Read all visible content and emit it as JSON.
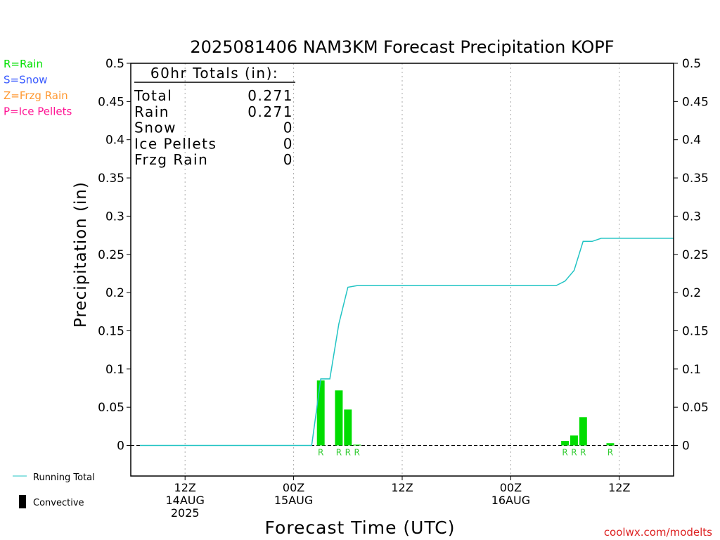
{
  "chart_data": {
    "type": "bar",
    "title": "2025081406 NAM3KM Forecast Precipitation KOPF",
    "xlabel": "Forecast Time (UTC)",
    "ylabel": "Precipitation (in)",
    "ylim": [
      -0.04,
      0.5
    ],
    "xlim": [
      "2025-08-14 06Z",
      "2025-08-16 18Z"
    ],
    "y_ticks": [
      "0",
      "0.05",
      "0.1",
      "0.15",
      "0.2",
      "0.25",
      "0.3",
      "0.35",
      "0.4",
      "0.45",
      "0.5"
    ],
    "x_ticks": [
      {
        "t": "2025-08-14 12Z",
        "lines": [
          "12Z",
          "14AUG",
          "2025"
        ]
      },
      {
        "t": "2025-08-15 00Z",
        "lines": [
          "00Z",
          "15AUG"
        ]
      },
      {
        "t": "2025-08-15 12Z",
        "lines": [
          "12Z"
        ]
      },
      {
        "t": "2025-08-16 00Z",
        "lines": [
          "00Z",
          "16AUG"
        ]
      },
      {
        "t": "2025-08-16 12Z",
        "lines": [
          "12Z"
        ]
      }
    ],
    "grid": "vertical dotted at tick times",
    "legend": {
      "placement": "left",
      "ptype_key": [
        {
          "label": "R=Rain",
          "color": "#00e000"
        },
        {
          "label": "S=Snow",
          "color": "#3a5bff"
        },
        {
          "label": "Z=Frzg Rain",
          "color": "#ff9933"
        },
        {
          "label": "P=Ice Pellets",
          "color": "#ff1493"
        }
      ],
      "series_key": [
        {
          "label": "Running Total",
          "color": "#22c4c4"
        },
        {
          "label": "Convective",
          "color": "#000000"
        }
      ]
    },
    "totals": {
      "header": "60hr Totals (in):",
      "rows": [
        {
          "label": "Total",
          "value": "0.271"
        },
        {
          "label": "Rain",
          "value": "0.271"
        },
        {
          "label": "Snow",
          "value": "0"
        },
        {
          "label": "Ice Pellets",
          "value": "0"
        },
        {
          "label": "Frzg Rain",
          "value": "0"
        }
      ]
    },
    "bars": [
      {
        "t": "2025-08-15 03Z",
        "value": 0.085,
        "ptype": "R"
      },
      {
        "t": "2025-08-15 05Z",
        "value": 0.072,
        "ptype": "R"
      },
      {
        "t": "2025-08-15 06Z",
        "value": 0.047,
        "ptype": "R"
      },
      {
        "t": "2025-08-15 07Z",
        "value": 0.001,
        "ptype": "R"
      },
      {
        "t": "2025-08-16 06Z",
        "value": 0.006,
        "ptype": "R"
      },
      {
        "t": "2025-08-16 07Z",
        "value": 0.013,
        "ptype": "R"
      },
      {
        "t": "2025-08-16 08Z",
        "value": 0.037,
        "ptype": "R"
      },
      {
        "t": "2025-08-16 11Z",
        "value": 0.003,
        "ptype": "R"
      }
    ],
    "running_total": [
      {
        "t": "2025-08-14 07Z",
        "value": 0
      },
      {
        "t": "2025-08-15 02Z",
        "value": 0
      },
      {
        "t": "2025-08-15 03Z",
        "value": 0.087
      },
      {
        "t": "2025-08-15 04Z",
        "value": 0.087
      },
      {
        "t": "2025-08-15 05Z",
        "value": 0.159
      },
      {
        "t": "2025-08-15 06Z",
        "value": 0.207
      },
      {
        "t": "2025-08-15 07Z",
        "value": 0.209
      },
      {
        "t": "2025-08-16 05Z",
        "value": 0.209
      },
      {
        "t": "2025-08-16 06Z",
        "value": 0.215
      },
      {
        "t": "2025-08-16 07Z",
        "value": 0.229
      },
      {
        "t": "2025-08-16 08Z",
        "value": 0.267
      },
      {
        "t": "2025-08-16 09Z",
        "value": 0.267
      },
      {
        "t": "2025-08-16 10Z",
        "value": 0.271
      },
      {
        "t": "2025-08-16 18Z",
        "value": 0.271
      }
    ],
    "colors": {
      "rain_bar": "#00dd00",
      "rain_label": "#33cc33",
      "running_total": "#22c4c4",
      "axis": "#000000",
      "grid": "#aaaaaa",
      "credit": "#dd2222"
    }
  },
  "credit": "coolwx.com/modelts"
}
